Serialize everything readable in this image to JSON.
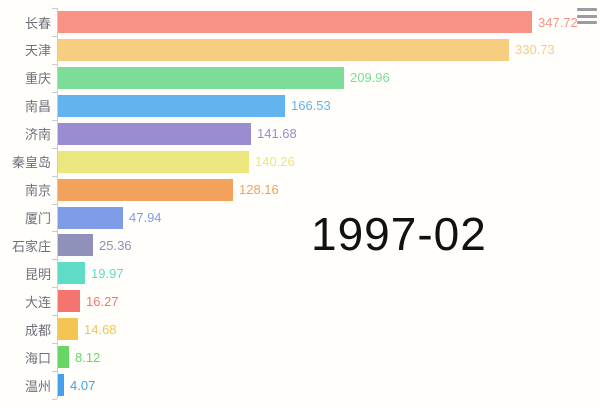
{
  "window": {
    "background": "#fffefb",
    "axis_color": "#cccccc",
    "label_color": "#6e7079",
    "time_label_color": "#111111"
  },
  "time_label": "1997-02",
  "toolbar": {
    "menu_icon": "hamburger-menu-icon"
  },
  "chart_data": {
    "type": "bar",
    "orientation": "horizontal",
    "title": "",
    "xlabel": "",
    "ylabel": "",
    "grid": false,
    "legend_position": "none",
    "axis_max": 350,
    "categories": [
      "长春",
      "天津",
      "重庆",
      "南昌",
      "济南",
      "秦皇岛",
      "南京",
      "厦门",
      "石家庄",
      "昆明",
      "大连",
      "成都",
      "海口",
      "温州"
    ],
    "values": [
      347.72,
      330.73,
      209.96,
      166.53,
      141.68,
      140.26,
      128.16,
      47.94,
      25.36,
      19.97,
      16.27,
      14.68,
      8.12,
      4.07
    ],
    "value_labels": [
      "347.72",
      "330.73",
      "209.96",
      "166.53",
      "141.68",
      "140.26",
      "128.16",
      "47.94",
      "25.36",
      "19.97",
      "16.27",
      "14.68",
      "8.12",
      "4.07"
    ],
    "bar_colors": [
      "#f89285",
      "#f7cd80",
      "#7bdd97",
      "#63b3ee",
      "#9b8bd1",
      "#ece67e",
      "#f2a25c",
      "#7f9de6",
      "#8f91ba",
      "#5fdcc6",
      "#f4756f",
      "#f4c552",
      "#66d666",
      "#459fe9"
    ]
  }
}
